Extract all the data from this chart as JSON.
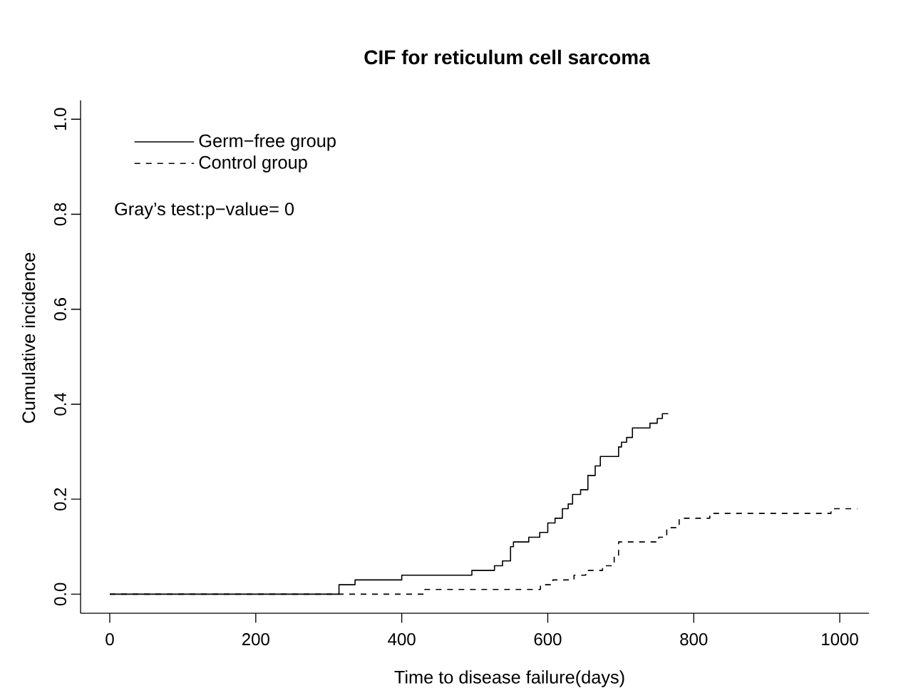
{
  "chart_data": {
    "type": "step",
    "title": "CIF for reticulum cell sarcoma",
    "xlabel": "Time to disease failure(days)",
    "ylabel": "Cumulative incidence",
    "annotations": [
      "Gray’s test:p−value= 0"
    ],
    "xlim": [
      -40,
      1040
    ],
    "ylim": [
      -0.04,
      1.04
    ],
    "xticks": [
      0,
      200,
      400,
      600,
      800,
      1000
    ],
    "yticks": [
      {
        "value": 0,
        "label": "0.0"
      },
      {
        "value": 0.2,
        "label": "0.2"
      },
      {
        "value": 0.4,
        "label": "0.4"
      },
      {
        "value": 0.6,
        "label": "0.6"
      },
      {
        "value": 0.8,
        "label": "0.8"
      },
      {
        "value": 1,
        "label": "1.0"
      }
    ],
    "legend": "top left",
    "series": [
      {
        "name": "Germ−free group",
        "color": "#000000",
        "line_style": "solid",
        "x": [
          0,
          314,
          336,
          400,
          496,
          527,
          538,
          549,
          553,
          574,
          589,
          600,
          610,
          620,
          628,
          634,
          645,
          655,
          665,
          672,
          697,
          701,
          708,
          716,
          740,
          750,
          757,
          765
        ],
        "values": [
          0,
          0.02,
          0.03,
          0.04,
          0.05,
          0.06,
          0.07,
          0.1,
          0.11,
          0.12,
          0.13,
          0.15,
          0.16,
          0.18,
          0.19,
          0.21,
          0.22,
          0.25,
          0.27,
          0.29,
          0.31,
          0.32,
          0.33,
          0.35,
          0.36,
          0.37,
          0.38,
          0.38
        ]
      },
      {
        "name": "Control group",
        "color": "#000000",
        "line_style": "dashed",
        "x": [
          0,
          430,
          590,
          607,
          636,
          652,
          675,
          691,
          697,
          752,
          763,
          780,
          822,
          988,
          1024
        ],
        "values": [
          0,
          0.01,
          0.02,
          0.03,
          0.04,
          0.05,
          0.06,
          0.08,
          0.11,
          0.12,
          0.14,
          0.16,
          0.17,
          0.18,
          0.18
        ]
      }
    ]
  }
}
